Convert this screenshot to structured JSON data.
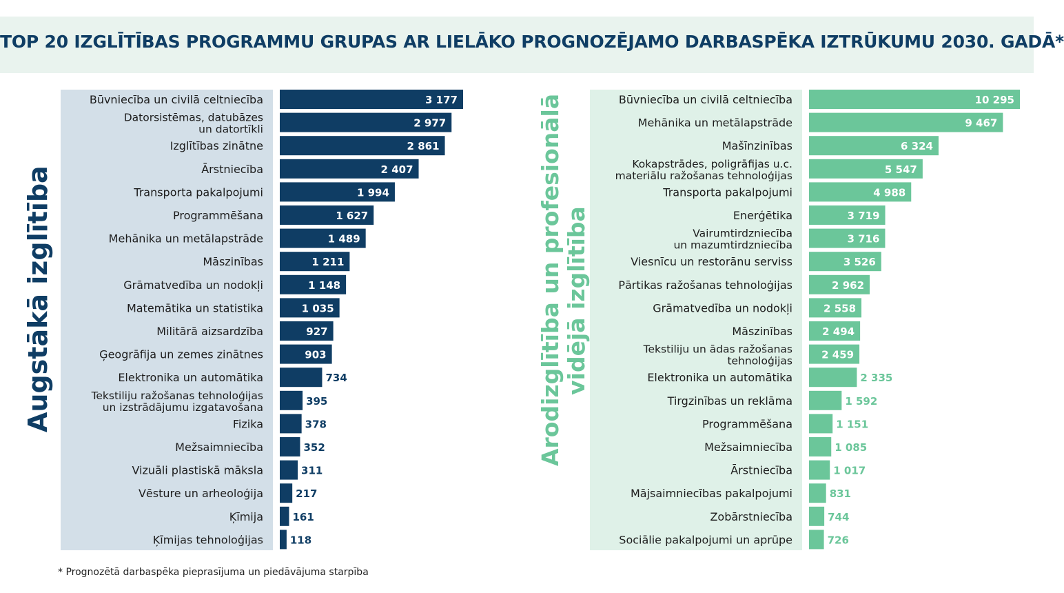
{
  "title": "TOP 20 IZGLĪTĪBAS PROGRAMMU GRUPAS AR LIELĀKO PROGNOZĒJAMO DARBASPĒKA IZTRŪKUMU 2030. GADĀ*",
  "footnote": "*  Prognozētā darbaspēka pieprasījuma un piedāvājuma starpība",
  "colors": {
    "left_bar": "#0f3d64",
    "right_bar": "#6bc69a",
    "left_panel": "#d3dfe8",
    "right_panel": "#dff1e8"
  },
  "chart_data": [
    {
      "type": "bar",
      "orientation": "horizontal",
      "title": "Augstākā izglītība",
      "categories": [
        "Būvniecība un civilā celtniecība",
        "Datorsistēmas, datubāzes\nun datortīkli",
        "Izglītības zinātne",
        "Ārstniecība",
        "Transporta pakalpojumi",
        "Programmēšana",
        "Mehānika un metālapstrāde",
        "Māszinības",
        "Grāmatvedība un nodokļi",
        "Matemātika un statistika",
        "Militārā aizsardzība",
        "Ģeogrāfija un zemes zinātnes",
        "Elektronika un automātika",
        "Tekstiliju ražošanas tehnoloģijas\nun izstrādājumu izgatavošana",
        "Fizika",
        "Mežsaimniecība",
        "Vizuāli plastiskā māksla",
        "Vēsture un arheoloģija",
        "Ķīmija",
        "Ķīmijas tehnoloģijas"
      ],
      "values": [
        3177,
        2977,
        2861,
        2407,
        1994,
        1627,
        1489,
        1211,
        1148,
        1035,
        927,
        903,
        734,
        395,
        378,
        352,
        311,
        217,
        161,
        118
      ],
      "labels": [
        "3 177",
        "2 977",
        "2 861",
        "2 407",
        "1 994",
        "1 627",
        "1 489",
        "1 211",
        "1 148",
        "1 035",
        "927",
        "903",
        "734",
        "395",
        "378",
        "352",
        "311",
        "217",
        "161",
        "118"
      ],
      "xlim": [
        0,
        3177
      ]
    },
    {
      "type": "bar",
      "orientation": "horizontal",
      "title": "Arodizglītība un profesionālā vidējā izglītība",
      "categories": [
        "Būvniecība un civilā celtniecība",
        "Mehānika un metālapstrāde",
        "Mašīnzinības",
        "Kokapstrādes, poligrāfijas u.c.\nmateriālu ražošanas tehnoloģijas",
        "Transporta pakalpojumi",
        "Enerģētika",
        "Vairumtirdzniecība\nun mazumtirdzniecība",
        "Viesnīcu un restorānu serviss",
        "Pārtikas ražošanas tehnoloģijas",
        "Grāmatvedība un nodokļi",
        "Māszinības",
        "Tekstiliju un ādas ražošanas\ntehnoloģijas",
        "Elektronika un automātika",
        "Tirgzinības un reklāma",
        "Programmēšana",
        "Mežsaimniecība",
        "Ārstniecība",
        "Mājsaimniecības pakalpojumi",
        "Zobārstniecība",
        "Sociālie pakalpojumi un aprūpe"
      ],
      "values": [
        10295,
        9467,
        6324,
        5547,
        4988,
        3719,
        3716,
        3526,
        2962,
        2558,
        2494,
        2459,
        2335,
        1592,
        1151,
        1085,
        1017,
        831,
        744,
        726
      ],
      "labels": [
        "10 295",
        "9 467",
        "6 324",
        "5 547",
        "4 988",
        "3 719",
        "3 716",
        "3 526",
        "2 962",
        "2 558",
        "2 494",
        "2 459",
        "2 335",
        "1 592",
        "1 151",
        "1 085",
        "1 017",
        "831",
        "744",
        "726"
      ],
      "xlim": [
        0,
        10295
      ]
    }
  ]
}
